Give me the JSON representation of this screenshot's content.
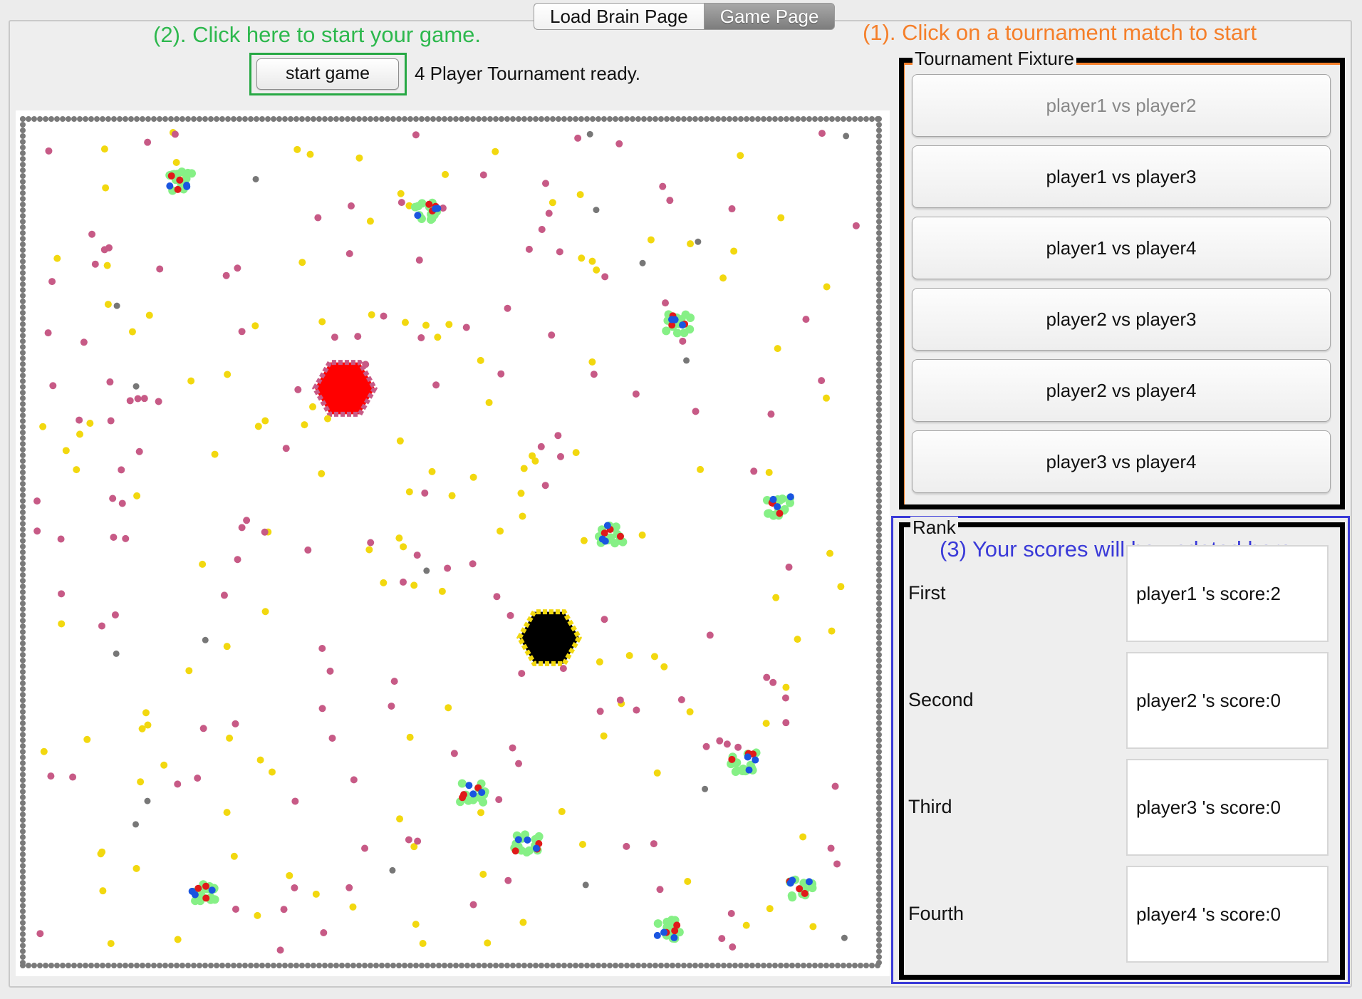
{
  "tabs": [
    "Load Brain Page",
    "Game Page"
  ],
  "active_tab": "Game Page",
  "annotations": {
    "start_hint": "(2). Click here to start your game.",
    "fixture_hint": "(1). Click on a tournament match to start",
    "rank_hint": "(3) Your scores will be updated here"
  },
  "controls": {
    "start_label": "start game",
    "status": "4 Player Tournament ready."
  },
  "fixture": {
    "title": "Tournament Fixture",
    "matches": [
      {
        "label": "player1 vs player2",
        "enabled": false
      },
      {
        "label": "player1 vs player3",
        "enabled": true
      },
      {
        "label": "player1 vs player4",
        "enabled": true
      },
      {
        "label": "player2 vs player3",
        "enabled": true
      },
      {
        "label": "player2 vs player4",
        "enabled": true
      },
      {
        "label": "player3 vs player4",
        "enabled": true
      }
    ]
  },
  "rank": {
    "title": "Rank",
    "rows": [
      {
        "place": "First",
        "score": "player1 's score:2"
      },
      {
        "place": "Second",
        "score": "player2 's score:0"
      },
      {
        "place": "Third",
        "score": "player3 's score:0"
      },
      {
        "place": "Fourth",
        "score": "player4 's score:0"
      }
    ]
  },
  "colors": {
    "border_rock": "#7a7a7a",
    "rock": "#777777",
    "food": "#f2d80f",
    "red_marker": "#c75a86",
    "red_anthill": "#ff0000",
    "black_anthill": "#000000",
    "ant_body": "#86f086",
    "ant_red": "#e01a1a",
    "ant_blue": "#1a55e0",
    "hint_green": "#2db84d",
    "hint_orange": "#f57f2a",
    "hint_blue": "#3a3ad8"
  }
}
